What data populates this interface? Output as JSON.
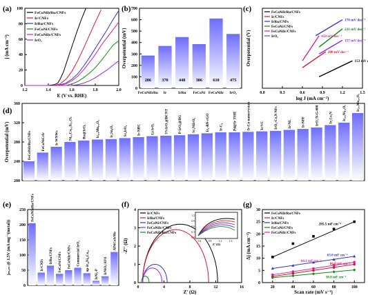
{
  "figure": {
    "panel_labels": [
      "(a)",
      "(b)",
      "(c)",
      "(d)",
      "(e)",
      "(f)",
      "(g)"
    ]
  },
  "chart_data": [
    {
      "id": "a",
      "type": "line",
      "xlabel": "E (V vs. RHE)",
      "ylabel": "j (mA cm⁻²)",
      "xlim": [
        1.2,
        2.0
      ],
      "ylim": [
        0,
        100
      ],
      "xticks": [
        "1.2",
        "1.4",
        "1.6",
        "1.8",
        "2.0"
      ],
      "yticks": [
        "0",
        "20",
        "40",
        "60",
        "80",
        "100"
      ],
      "legend_position": "top-left",
      "series": [
        {
          "name": "FeCoNiIrRu/CNFs",
          "color": "#000000",
          "x": [
            1.2,
            1.4,
            1.45,
            1.48,
            1.5,
            1.53,
            1.56,
            1.6,
            1.64,
            1.68,
            1.72
          ],
          "y": [
            0,
            0,
            1,
            3,
            8,
            18,
            32,
            50,
            68,
            85,
            100
          ]
        },
        {
          "name": "Ir/CNFs",
          "color": "#e0112b",
          "x": [
            1.2,
            1.45,
            1.5,
            1.55,
            1.6,
            1.65,
            1.7,
            1.75,
            1.8,
            1.85
          ],
          "y": [
            0,
            0,
            2,
            8,
            18,
            32,
            48,
            65,
            82,
            98
          ]
        },
        {
          "name": "IrRu/CNFs",
          "color": "#3333cc",
          "x": [
            1.2,
            1.48,
            1.55,
            1.6,
            1.65,
            1.7,
            1.75,
            1.8,
            1.85,
            1.9,
            1.95,
            2.0
          ],
          "y": [
            0,
            0,
            3,
            8,
            15,
            25,
            36,
            48,
            60,
            72,
            85,
            97
          ]
        },
        {
          "name": "FeCoNi/CNFs",
          "color": "#0a8a0a",
          "x": [
            1.2,
            1.55,
            1.6,
            1.65,
            1.7,
            1.75,
            1.8,
            1.85,
            1.9,
            1.95,
            2.0
          ],
          "y": [
            0,
            0,
            2,
            5,
            10,
            16,
            23,
            32,
            42,
            52,
            58
          ]
        },
        {
          "name": "FeCoNiIr/CNFs",
          "color": "#e01d9a",
          "x": [
            1.2,
            1.5,
            1.55,
            1.6,
            1.65,
            1.7,
            1.75,
            1.8,
            1.85,
            1.9,
            1.95,
            2.0
          ],
          "y": [
            0,
            0,
            2,
            6,
            12,
            20,
            30,
            40,
            52,
            62,
            72,
            82
          ]
        },
        {
          "name": "IrO₂",
          "color": "#a020f0",
          "x": [
            1.2,
            1.6,
            1.65,
            1.7,
            1.75,
            1.8,
            1.85,
            1.9,
            1.95,
            2.0
          ],
          "y": [
            0,
            0,
            1,
            3,
            6,
            10,
            15,
            20,
            26,
            32
          ]
        }
      ]
    },
    {
      "id": "b",
      "type": "bar",
      "ylabel": "Overpotential (mV)",
      "ylim": [
        0,
        700
      ],
      "yticks": [
        "0",
        "100",
        "200",
        "300",
        "400",
        "500",
        "600",
        "700"
      ],
      "categories": [
        "FeCoNiIrRu",
        "Ir",
        "IrRu",
        "FeCoNi",
        "FeCoNiIr",
        "IrO₂"
      ],
      "values": [
        286,
        370,
        448,
        386,
        610,
        475
      ],
      "value_labels": [
        "286",
        "370",
        "448",
        "386",
        "610",
        "475"
      ],
      "bar_color_top": "#6d6dff",
      "bar_color_bottom": "#ffffff"
    },
    {
      "id": "c",
      "type": "line",
      "xlabel": "log J (mA cm⁻²)",
      "ylabel": "Overpotential (V)",
      "xlim": [
        0.0,
        1.5
      ],
      "xticks": [
        "0.0",
        "0.3",
        "0.6",
        "0.9",
        "1.2",
        "1.5"
      ],
      "legend_position": "top-left",
      "series": [
        {
          "name": "FeCoNiIrRu/CNFs",
          "color": "#000000",
          "slope_label": "153 mV dec⁻¹",
          "x": [
            0.85,
            1.35
          ],
          "y": [
            0.2,
            0.27
          ]
        },
        {
          "name": "Ir/CNFs",
          "color": "#e0112b",
          "slope_label": "200 mV dec⁻¹",
          "x": [
            0.6,
            0.95
          ],
          "y": [
            0.24,
            0.31
          ]
        },
        {
          "name": "IrRu/CNFs",
          "color": "#3333cc",
          "slope_label": "170 mV dec⁻¹",
          "x": [
            0.8,
            1.2
          ],
          "y": [
            0.38,
            0.45
          ]
        },
        {
          "name": "FeCoNi/CNFs",
          "color": "#0a8a0a",
          "slope_label": "231 mV dec⁻¹",
          "x": [
            0.85,
            1.2
          ],
          "y": [
            0.33,
            0.41
          ]
        },
        {
          "name": "FeCoNiIr/CNFs",
          "color": "#e01d9a",
          "slope_label": "450 mV dec⁻¹",
          "x": [
            0.6,
            0.85
          ],
          "y": [
            0.27,
            0.38
          ]
        },
        {
          "name": "IrO₂",
          "color": "#a020f0",
          "slope_label": "157 mV dec⁻¹",
          "x": [
            0.85,
            1.2
          ],
          "y": [
            0.3,
            0.36
          ]
        }
      ]
    },
    {
      "id": "d",
      "type": "bar",
      "ylabel": "Overpotential (mV)",
      "ylim": [
        200,
        360
      ],
      "yticks": [
        "200",
        "240",
        "280",
        "320",
        "360"
      ],
      "categories": [
        "FeCoNiIrRu/CNFs",
        "FeCoNiCrIr",
        "Ir WNWs",
        "Ni₀.₃Co₀.₂Ir₀.₅Oₓ",
        "Ru@IrOₓ",
        "Ir₀.₆Mn₀.₄O₂",
        "Ir₂Sn₂O₇",
        "Sr₂IrO₄",
        "Ir-NRC",
        "Li-IrOₓ",
        "3%IrO₂@BCNT",
        "P-IrOₓ@DG",
        "Sr₂NiIrO₆",
        "Ir₆-BN-rGO",
        "Ir-C₈",
        "Pd@Ir TOH",
        "Ir-Cu nanocrystals",
        "Ir/VC",
        "IrO₂-Co₂N NFs",
        "Ir-NL",
        "Ir-NFF",
        "IrO₂/N-G-600",
        "Ir₂Co₂N",
        "Ir₀.₆Ni₀.₄Oₓ",
        "Ir₀.₅Mo₀.₅Oₓ"
      ],
      "values": [
        240,
        258,
        270,
        280,
        283,
        285,
        286,
        288,
        290,
        292,
        293,
        294,
        296,
        298,
        300,
        300,
        301,
        302,
        303,
        305,
        307,
        310,
        315,
        320,
        340
      ],
      "bar_color_top": "#6d6dff",
      "bar_color_bottom": "#ffffff"
    },
    {
      "id": "e",
      "type": "bar",
      "ylabel": "jₘₐₛₛ @ 1.5V (mA mg⁻¹(metal))",
      "ylim": [
        0,
        250
      ],
      "yticks": [
        "0",
        "50",
        "100",
        "150",
        "200",
        "250"
      ],
      "categories": [
        "FeCoNiIrRu/CNFs",
        "Ir/CNFs",
        "IrRu/CNFs",
        "FeCoNi/CNFs",
        "FeCoNiIr/CNFs",
        "Commercial IrO₂",
        "np-Ir₇₀Ni₁₅Co₁₅",
        "IrNi₃-P",
        "IrNiOₓ/ATO",
        "AlNiCoIrMo"
      ],
      "values": [
        205,
        42,
        65,
        38,
        50,
        58,
        40,
        15,
        30,
        110
      ],
      "bar_color_top": "#6d6dff",
      "bar_color_bottom": "#ffffff"
    },
    {
      "id": "f",
      "type": "line",
      "xlabel": "Z' (Ω)",
      "ylabel": "-Z'' (Ω)",
      "xlim": [
        0,
        16
      ],
      "ylim": [
        0,
        4
      ],
      "xticks": [
        "0",
        "4",
        "8",
        "12",
        "16"
      ],
      "yticks": [
        "0",
        "1",
        "2",
        "3",
        "4"
      ],
      "legend_position": "top-left",
      "series": [
        {
          "name": "Ir/CNFs",
          "color": "#000000",
          "center": 6.5,
          "radius": 5.8,
          "height": 3.2
        },
        {
          "name": "IrRu/CNFs",
          "color": "#e0112b",
          "center": 5.8,
          "radius": 5.1,
          "height": 2.9
        },
        {
          "name": "FeCoNi/CNFs",
          "color": "#3333cc",
          "center": 2.6,
          "radius": 1.9,
          "height": 1.0
        },
        {
          "name": "FeCoNiIr/CNFs",
          "color": "#a020f0",
          "center": 2.2,
          "radius": 1.5,
          "height": 0.8
        },
        {
          "name": "FeCoNiIrRu/CNFs",
          "color": "#0a8a0a",
          "center": 1.1,
          "radius": 0.6,
          "height": 0.35
        }
      ],
      "inset": {
        "xlabel": "Z' (Ω)",
        "ylabel": "-Z'' (Ω)",
        "xticks": [
          "0.4",
          "0.8",
          "1.2",
          "1.6"
        ],
        "yticks": [
          "0.0",
          "0.3",
          "0.6",
          "0.9",
          "1.2"
        ]
      }
    },
    {
      "id": "g",
      "type": "scatter",
      "xlabel": "Scan rate (mV s⁻¹)",
      "ylabel": "Δj (mA cm⁻²)",
      "xlim": [
        10,
        110
      ],
      "ylim": [
        0,
        30
      ],
      "xticks": [
        "20",
        "40",
        "60",
        "80",
        "100"
      ],
      "yticks": [
        "0",
        "5",
        "10",
        "15",
        "20",
        "25",
        "30"
      ],
      "legend_position": "top-left",
      "series": [
        {
          "name": "FeCoNiIrRu/CNFs",
          "color": "#000000",
          "marker": "square",
          "cdl_label": "285.5 mF cm⁻²",
          "x": [
            20,
            40,
            60,
            80,
            100
          ],
          "y": [
            10.5,
            16.0,
            19.0,
            22.0,
            25.0
          ]
        },
        {
          "name": "Ir/CNFs",
          "color": "#e0112b",
          "marker": "circle",
          "cdl_label": "66.8 mF cm⁻²",
          "x": [
            20,
            40,
            60,
            80,
            100
          ],
          "y": [
            2.5,
            3.8,
            5.0,
            6.2,
            7.5
          ]
        },
        {
          "name": "IrRu/CNFs",
          "color": "#3333cc",
          "marker": "triangle",
          "cdl_label": "63.8 mF cm⁻²",
          "x": [
            20,
            40,
            60,
            80,
            100
          ],
          "y": [
            5.8,
            7.0,
            8.3,
            9.5,
            10.8
          ]
        },
        {
          "name": "FeCoNi/CNFs",
          "color": "#0a8a0a",
          "marker": "diamond",
          "cdl_label": "38.8 mF cm⁻²",
          "x": [
            20,
            40,
            60,
            80,
            100
          ],
          "y": [
            2.0,
            2.8,
            3.6,
            4.4,
            5.2
          ]
        },
        {
          "name": "FeCoNiIr/CNFs",
          "color": "#e01d9a",
          "marker": "circle",
          "cdl_label": "64.1 mF cm⁻²",
          "x": [
            20,
            40,
            60,
            80,
            100
          ],
          "y": [
            3.2,
            4.5,
            5.8,
            7.1,
            8.4
          ]
        }
      ]
    }
  ]
}
